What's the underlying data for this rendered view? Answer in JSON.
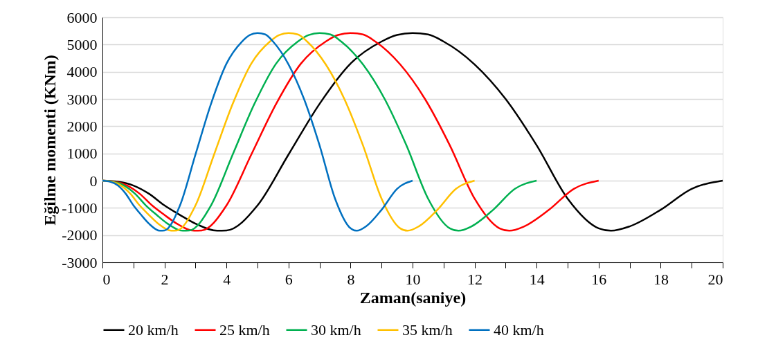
{
  "chart_data": {
    "type": "line",
    "xlabel": "Zaman(saniye)",
    "ylabel": "Eğilme momenti (KNm)",
    "xlim": [
      0,
      20
    ],
    "ylim": [
      -3000,
      6000
    ],
    "xticks": [
      0,
      {
        "value": 1,
        "label": null
      },
      2,
      {
        "value": 3,
        "label": null
      },
      4,
      {
        "value": 5,
        "label": null
      },
      6,
      {
        "value": 7,
        "label": null
      },
      8,
      {
        "value": 9,
        "label": null
      },
      10,
      {
        "value": 11,
        "label": null
      },
      12,
      {
        "value": 13,
        "label": null
      },
      14,
      {
        "value": 15,
        "label": null
      },
      16,
      {
        "value": 17,
        "label": null
      },
      18,
      {
        "value": 19,
        "label": null
      },
      20
    ],
    "yticks": [
      -3000,
      -2000,
      -1000,
      0,
      1000,
      2000,
      3000,
      4000,
      5000,
      6000
    ],
    "grid": "y",
    "legend": "bottom",
    "marker": "none",
    "line_style": "solid",
    "series": [
      {
        "name": "20 km/h",
        "color": "#000000",
        "x": [
          0,
          0.5,
          1,
          1.5,
          2,
          2.5,
          3,
          3.7,
          4,
          5,
          6,
          7,
          8,
          9,
          9.5,
          10,
          10.5,
          11,
          12,
          13,
          14,
          15,
          16,
          16.4,
          17,
          18,
          19,
          20
        ],
        "values": [
          0,
          -40,
          -180,
          -480,
          -910,
          -1260,
          -1580,
          -1840,
          -1830,
          -910,
          960,
          2820,
          4300,
          5110,
          5350,
          5420,
          5370,
          5110,
          4270,
          3000,
          1300,
          -660,
          -1750,
          -1840,
          -1680,
          -1070,
          -300,
          0
        ]
      },
      {
        "name": "25 km/h",
        "color": "#ff0000",
        "x": [
          0,
          0.4,
          0.8,
          1.2,
          1.6,
          2,
          2.4,
          2.96,
          3.2,
          4,
          4.8,
          5.6,
          6.4,
          7.2,
          7.6,
          8,
          8.4,
          8.8,
          9.6,
          10.4,
          11.2,
          12,
          12.8,
          13.12,
          13.6,
          14.4,
          15.2,
          16
        ],
        "values": [
          0,
          -40,
          -180,
          -480,
          -910,
          -1260,
          -1580,
          -1840,
          -1830,
          -910,
          960,
          2820,
          4300,
          5110,
          5350,
          5420,
          5370,
          5110,
          4270,
          3000,
          1300,
          -660,
          -1750,
          -1840,
          -1680,
          -1070,
          -300,
          0
        ]
      },
      {
        "name": "30 km/h",
        "color": "#00b050",
        "x": [
          0,
          0.35,
          0.7,
          1.05,
          1.4,
          1.75,
          2.1,
          2.59,
          2.8,
          3.5,
          4.2,
          4.9,
          5.6,
          6.3,
          6.65,
          7,
          7.35,
          7.7,
          8.4,
          9.1,
          9.8,
          10.5,
          11.2,
          11.48,
          11.9,
          12.6,
          13.3,
          14
        ],
        "values": [
          0,
          -40,
          -180,
          -480,
          -910,
          -1260,
          -1580,
          -1840,
          -1830,
          -910,
          960,
          2820,
          4300,
          5110,
          5350,
          5420,
          5370,
          5110,
          4270,
          3000,
          1300,
          -660,
          -1750,
          -1840,
          -1680,
          -1070,
          -300,
          0
        ]
      },
      {
        "name": "35 km/h",
        "color": "#ffc000",
        "x": [
          0,
          0.3,
          0.6,
          0.9,
          1.2,
          1.5,
          1.8,
          2.22,
          2.4,
          3,
          3.6,
          4.2,
          4.8,
          5.4,
          5.7,
          6,
          6.3,
          6.6,
          7.2,
          7.8,
          8.4,
          9,
          9.6,
          9.84,
          10.2,
          10.8,
          11.4,
          12
        ],
        "values": [
          0,
          -40,
          -180,
          -480,
          -910,
          -1260,
          -1580,
          -1840,
          -1830,
          -910,
          960,
          2820,
          4300,
          5110,
          5350,
          5420,
          5370,
          5110,
          4270,
          3000,
          1300,
          -660,
          -1750,
          -1840,
          -1680,
          -1070,
          -300,
          0
        ]
      },
      {
        "name": "40 km/h",
        "color": "#0070c0",
        "x": [
          0,
          0.25,
          0.5,
          0.75,
          1,
          1.25,
          1.5,
          1.85,
          2,
          2.5,
          3,
          3.5,
          4,
          4.5,
          4.75,
          5,
          5.25,
          5.5,
          6,
          6.5,
          7,
          7.5,
          8,
          8.2,
          8.5,
          9,
          9.5,
          10
        ],
        "values": [
          0,
          -40,
          -180,
          -480,
          -910,
          -1260,
          -1580,
          -1840,
          -1830,
          -910,
          960,
          2820,
          4300,
          5110,
          5350,
          5420,
          5370,
          5110,
          4270,
          3000,
          1300,
          -660,
          -1750,
          -1840,
          -1680,
          -1070,
          -300,
          0
        ]
      }
    ]
  }
}
